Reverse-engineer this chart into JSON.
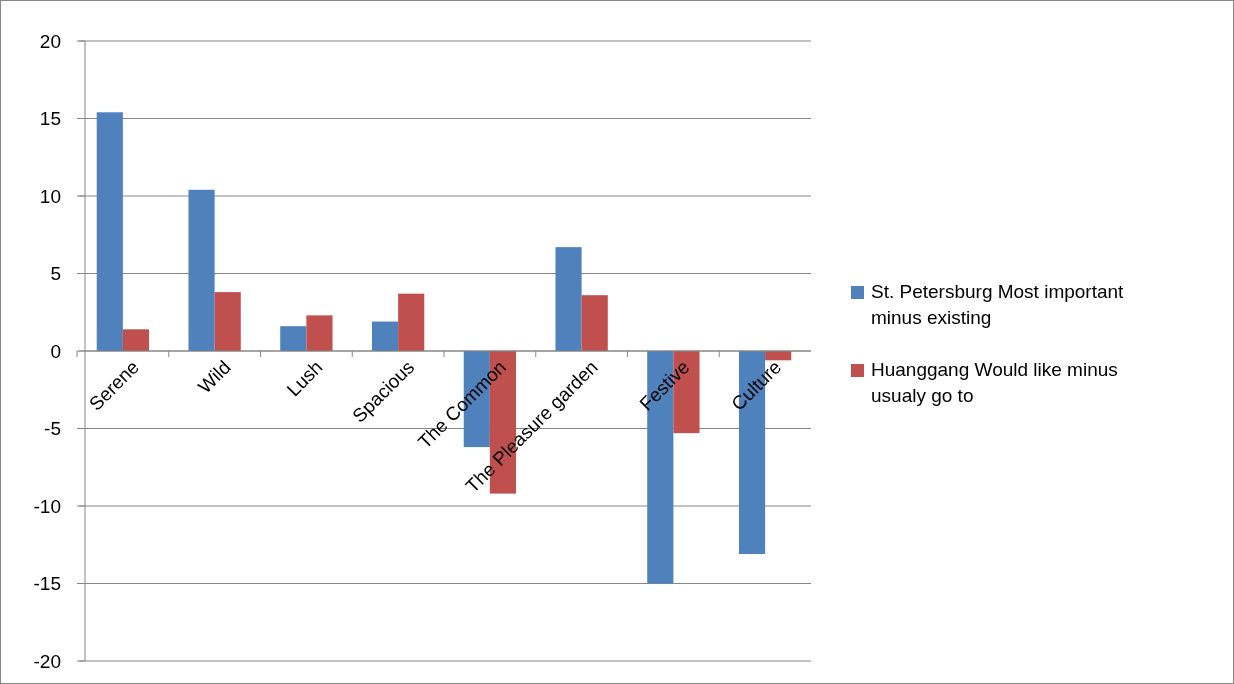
{
  "chart_data": {
    "type": "bar",
    "categories": [
      "Serene",
      "Wild",
      "Lush",
      "Spacious",
      "The Common",
      "The Pleasure garden",
      "Festive",
      "Culture"
    ],
    "series": [
      {
        "name": "St. Petersburg Most important minus existing",
        "color": "#4f81bd",
        "values": [
          15.4,
          10.4,
          1.6,
          1.9,
          -6.2,
          6.7,
          -15.0,
          -13.1
        ]
      },
      {
        "name": "Huanggang Would like minus usualy go to",
        "color": "#c0504d",
        "values": [
          1.4,
          3.8,
          2.3,
          3.7,
          -9.2,
          3.6,
          -5.3,
          -0.6
        ]
      }
    ],
    "ylim": [
      -20,
      20
    ],
    "yticks": [
      -20,
      -15,
      -10,
      -5,
      0,
      5,
      10,
      15,
      20
    ],
    "grid": "y",
    "legend": "right"
  }
}
